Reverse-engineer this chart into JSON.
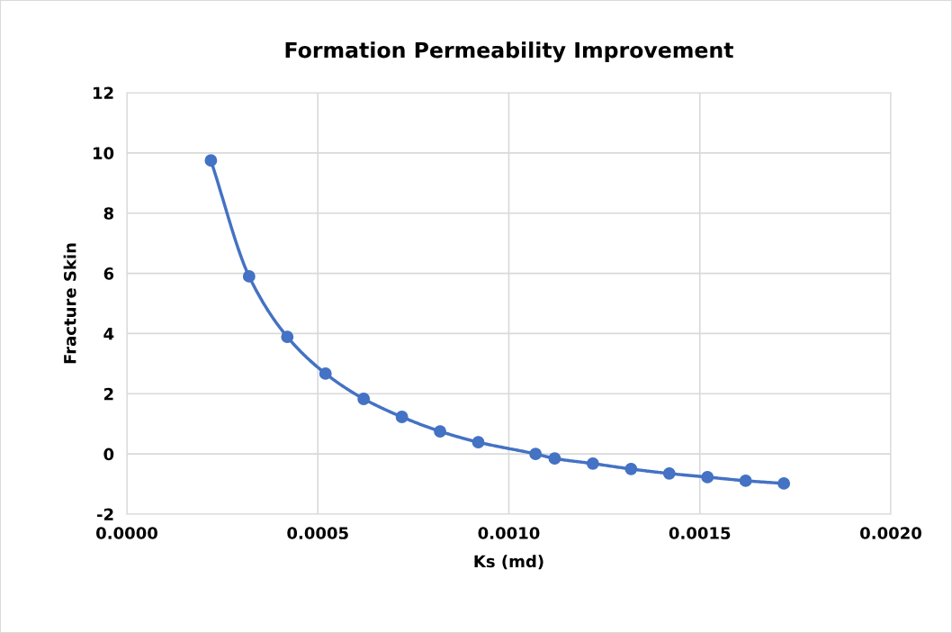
{
  "chart_data": {
    "type": "line",
    "title": "Formation Permeability Improvement",
    "xlabel": "Ks (md)",
    "ylabel": "Fracture Skin",
    "x": [
      0.00022,
      0.00032,
      0.00042,
      0.00052,
      0.00062,
      0.00072,
      0.00082,
      0.00092,
      0.00107,
      0.00112,
      0.00122,
      0.00132,
      0.00142,
      0.00152,
      0.00162,
      0.00172
    ],
    "series": [
      {
        "color": "#4472c4",
        "values": [
          9.75,
          5.9,
          3.89,
          2.67,
          1.83,
          1.23,
          0.75,
          0.39,
          0.0,
          -0.15,
          -0.32,
          -0.5,
          -0.65,
          -0.77,
          -0.89,
          -0.98
        ]
      }
    ],
    "xlim": [
      0,
      0.002
    ],
    "xticks": [
      {
        "value": 0,
        "label": "0.0000"
      },
      {
        "value": 0.0005,
        "label": "0.0005"
      },
      {
        "value": 0.001,
        "label": "0.0010"
      },
      {
        "value": 0.0015,
        "label": "0.0015"
      },
      {
        "value": 0.002,
        "label": "0.0020"
      }
    ],
    "ylim": [
      -2,
      12
    ],
    "yticks": [
      -2,
      0,
      2,
      4,
      6,
      8,
      10,
      12
    ],
    "grid": true,
    "marker": "circle",
    "line_style": "solid"
  }
}
